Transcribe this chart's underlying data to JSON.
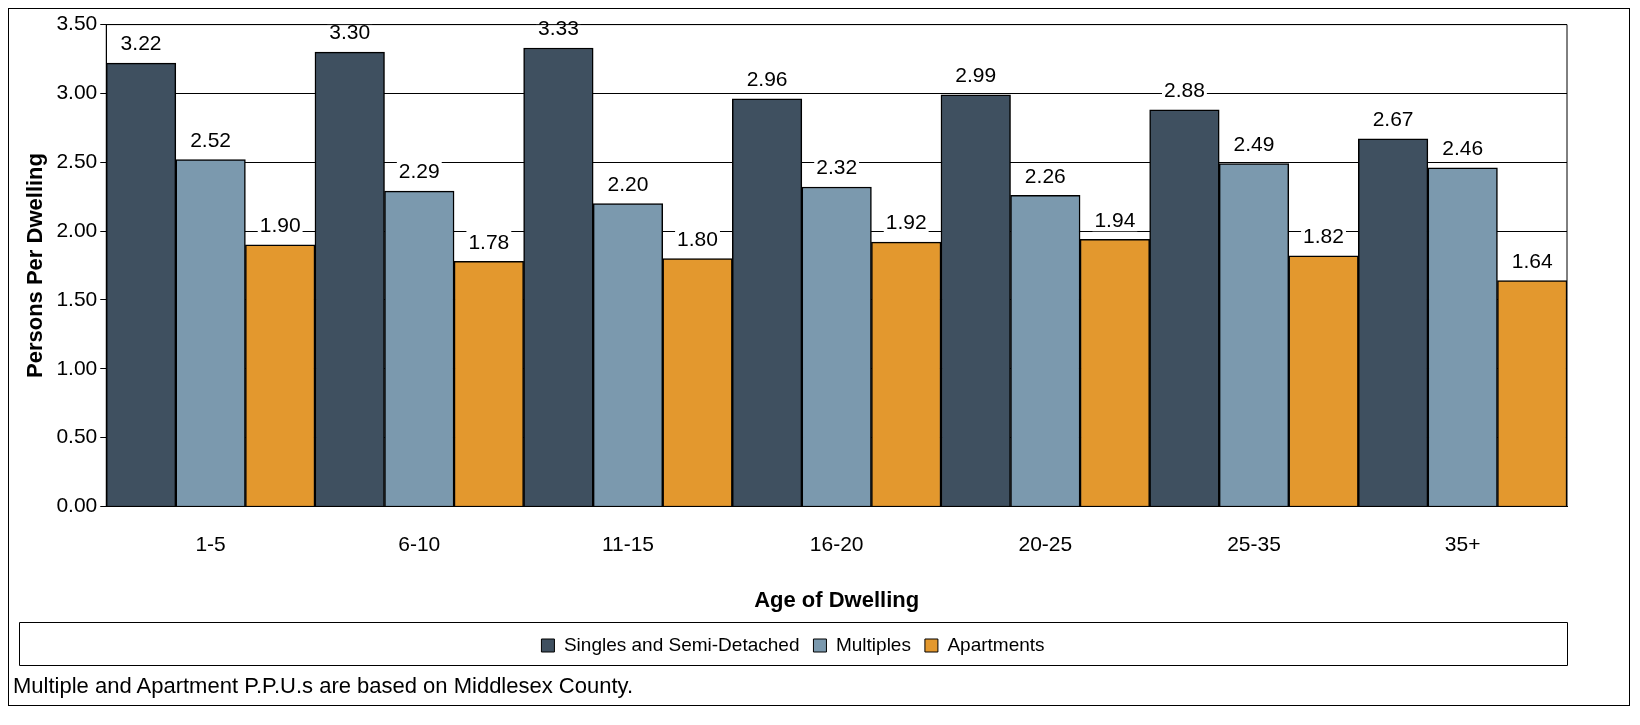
{
  "chart_data": {
    "type": "bar",
    "xlabel": "Age of Dwelling",
    "ylabel": "Persons Per Dwelling",
    "categories": [
      "1-5",
      "6-10",
      "11-15",
      "16-20",
      "20-25",
      "25-35",
      "35+"
    ],
    "series": [
      {
        "name": "Singles and Semi-Detached",
        "color": "#3f5060",
        "values": [
          3.22,
          3.3,
          3.33,
          2.96,
          2.99,
          2.88,
          2.67
        ],
        "value_labels": [
          "3.22",
          "3.30",
          "3.33",
          "2.96",
          "2.99",
          "2.88",
          "2.67"
        ]
      },
      {
        "name": "Multiples",
        "color": "#7b99ae",
        "values": [
          2.52,
          2.29,
          2.2,
          2.32,
          2.26,
          2.49,
          2.46
        ],
        "value_labels": [
          "2.52",
          "2.29",
          "2.20",
          "2.32",
          "2.26",
          "2.49",
          "2.46"
        ]
      },
      {
        "name": "Apartments",
        "color": "#e3982e",
        "values": [
          1.9,
          1.78,
          1.8,
          1.92,
          1.94,
          1.82,
          1.64
        ],
        "value_labels": [
          "1.90",
          "1.78",
          "1.80",
          "1.92",
          "1.94",
          "1.82",
          "1.64"
        ]
      }
    ],
    "ylim": [
      0,
      3.5
    ],
    "yticks": [
      {
        "value": 0,
        "label": "0.00"
      },
      {
        "value": 0.5,
        "label": "0.50"
      },
      {
        "value": 1,
        "label": "1.00"
      },
      {
        "value": 1.5,
        "label": "1.50"
      },
      {
        "value": 2,
        "label": "2.00"
      },
      {
        "value": 2.5,
        "label": "2.50"
      },
      {
        "value": 3,
        "label": "3.00"
      },
      {
        "value": 3.5,
        "label": "3.50"
      }
    ],
    "grid": "y",
    "legend": "bottom",
    "annotations": [
      "Multiple and Apartment P.P.U.s are based on Middlesex County."
    ]
  }
}
